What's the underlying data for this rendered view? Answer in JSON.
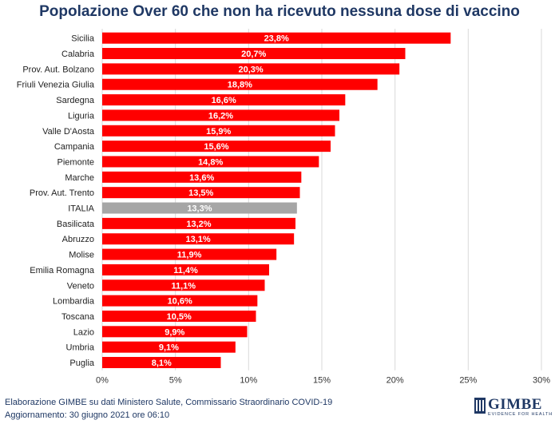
{
  "title": "Popolazione Over 60 che non ha ricevuto nessuna dose di vaccino",
  "footer": {
    "source": "Elaborazione GIMBE su dati Ministero Salute, Commissario Straordinario COVID-19",
    "updated": "Aggiornamento: 30 giugno 2021 ore 06:10"
  },
  "logo": {
    "name": "GIMBE",
    "tagline": "EVIDENCE FOR HEALTH"
  },
  "colors": {
    "bar": "#ff0000",
    "highlight": "#a6a6a6",
    "title": "#1f3864",
    "grid": "#d9d9d9"
  },
  "chart_data": {
    "type": "bar",
    "orientation": "horizontal",
    "categories": [
      "Sicilia",
      "Calabria",
      "Prov. Aut. Bolzano",
      "Friuli Venezia Giulia",
      "Sardegna",
      "Liguria",
      "Valle D'Aosta",
      "Campania",
      "Piemonte",
      "Marche",
      "Prov. Aut. Trento",
      "ITALIA",
      "Basilicata",
      "Abruzzo",
      "Molise",
      "Emilia Romagna",
      "Veneto",
      "Lombardia",
      "Toscana",
      "Lazio",
      "Umbria",
      "Puglia"
    ],
    "values": [
      23.8,
      20.7,
      20.3,
      18.8,
      16.6,
      16.2,
      15.9,
      15.6,
      14.8,
      13.6,
      13.5,
      13.3,
      13.2,
      13.1,
      11.9,
      11.4,
      11.1,
      10.6,
      10.5,
      9.9,
      9.1,
      8.1
    ],
    "data_labels": [
      "23,8%",
      "20,7%",
      "20,3%",
      "18,8%",
      "16,6%",
      "16,2%",
      "15,9%",
      "15,6%",
      "14,8%",
      "13,6%",
      "13,5%",
      "13,3%",
      "13,2%",
      "13,1%",
      "11,9%",
      "11,4%",
      "11,1%",
      "10,6%",
      "10,5%",
      "9,9%",
      "9,1%",
      "8,1%"
    ],
    "highlight_category": "ITALIA",
    "xlim": [
      0,
      30
    ],
    "x_ticks": [
      0,
      5,
      10,
      15,
      20,
      25,
      30
    ],
    "x_tick_labels": [
      "0%",
      "5%",
      "10%",
      "15%",
      "20%",
      "25%",
      "30%"
    ],
    "grid": true,
    "legend": "none",
    "xlabel": "",
    "ylabel": ""
  }
}
